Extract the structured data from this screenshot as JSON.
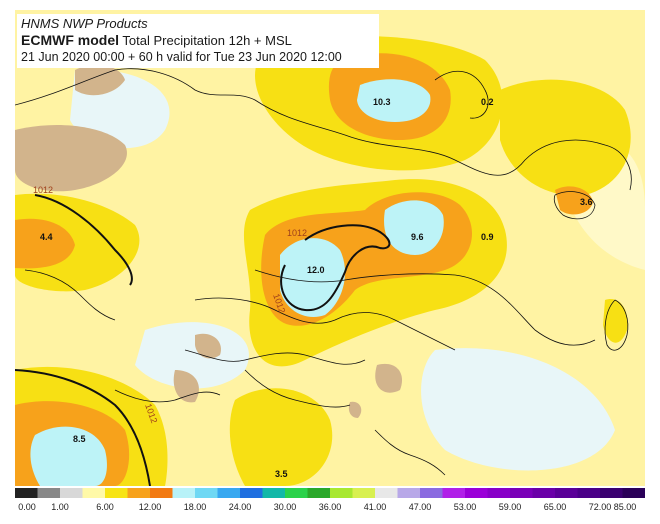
{
  "header": {
    "line1": "HNMS NWP Products",
    "model": "ECMWF model",
    "product": "Total Precipitation 12h + MSL",
    "line3": "21 Jun 2020 00:00 + 60 h valid for Tue 23 Jun 2020 12:00"
  },
  "precip_maxima": [
    {
      "label": "10.3"
    },
    {
      "label": "0.2"
    },
    {
      "label": "3.6"
    },
    {
      "label": "4.4"
    },
    {
      "label": "9.6"
    },
    {
      "label": "0.9"
    },
    {
      "label": "12.0"
    },
    {
      "label": "8.5"
    },
    {
      "label": "3.5"
    }
  ],
  "isobars": [
    {
      "label": "1012"
    },
    {
      "label": "1012"
    },
    {
      "label": "1012"
    },
    {
      "label": "1012"
    }
  ],
  "colorbar": {
    "labels": [
      "0.00",
      "1.00",
      "6.00",
      "12.00",
      "18.00",
      "24.00",
      "30.00",
      "36.00",
      "41.00",
      "47.00",
      "53.00",
      "59.00",
      "65.00",
      "72.00",
      "85.00"
    ],
    "colors": [
      "#222222",
      "#888888",
      "#d8d8d8",
      "#fff9a8",
      "#f7e414",
      "#f7a21b",
      "#f27a12",
      "#b8f2f8",
      "#6fd8f4",
      "#38a8f0",
      "#1f6fe0",
      "#12b8a8",
      "#2ad24a",
      "#2aa82a",
      "#a8e830",
      "#d8f050",
      "#e8e8e8",
      "#b8a8e8",
      "#8a6ae0",
      "#b020e8",
      "#9a00d8",
      "#8800c8",
      "#7a00b8",
      "#6a00a8",
      "#5a0098",
      "#4a0088",
      "#3a0070",
      "#2a0058"
    ]
  }
}
